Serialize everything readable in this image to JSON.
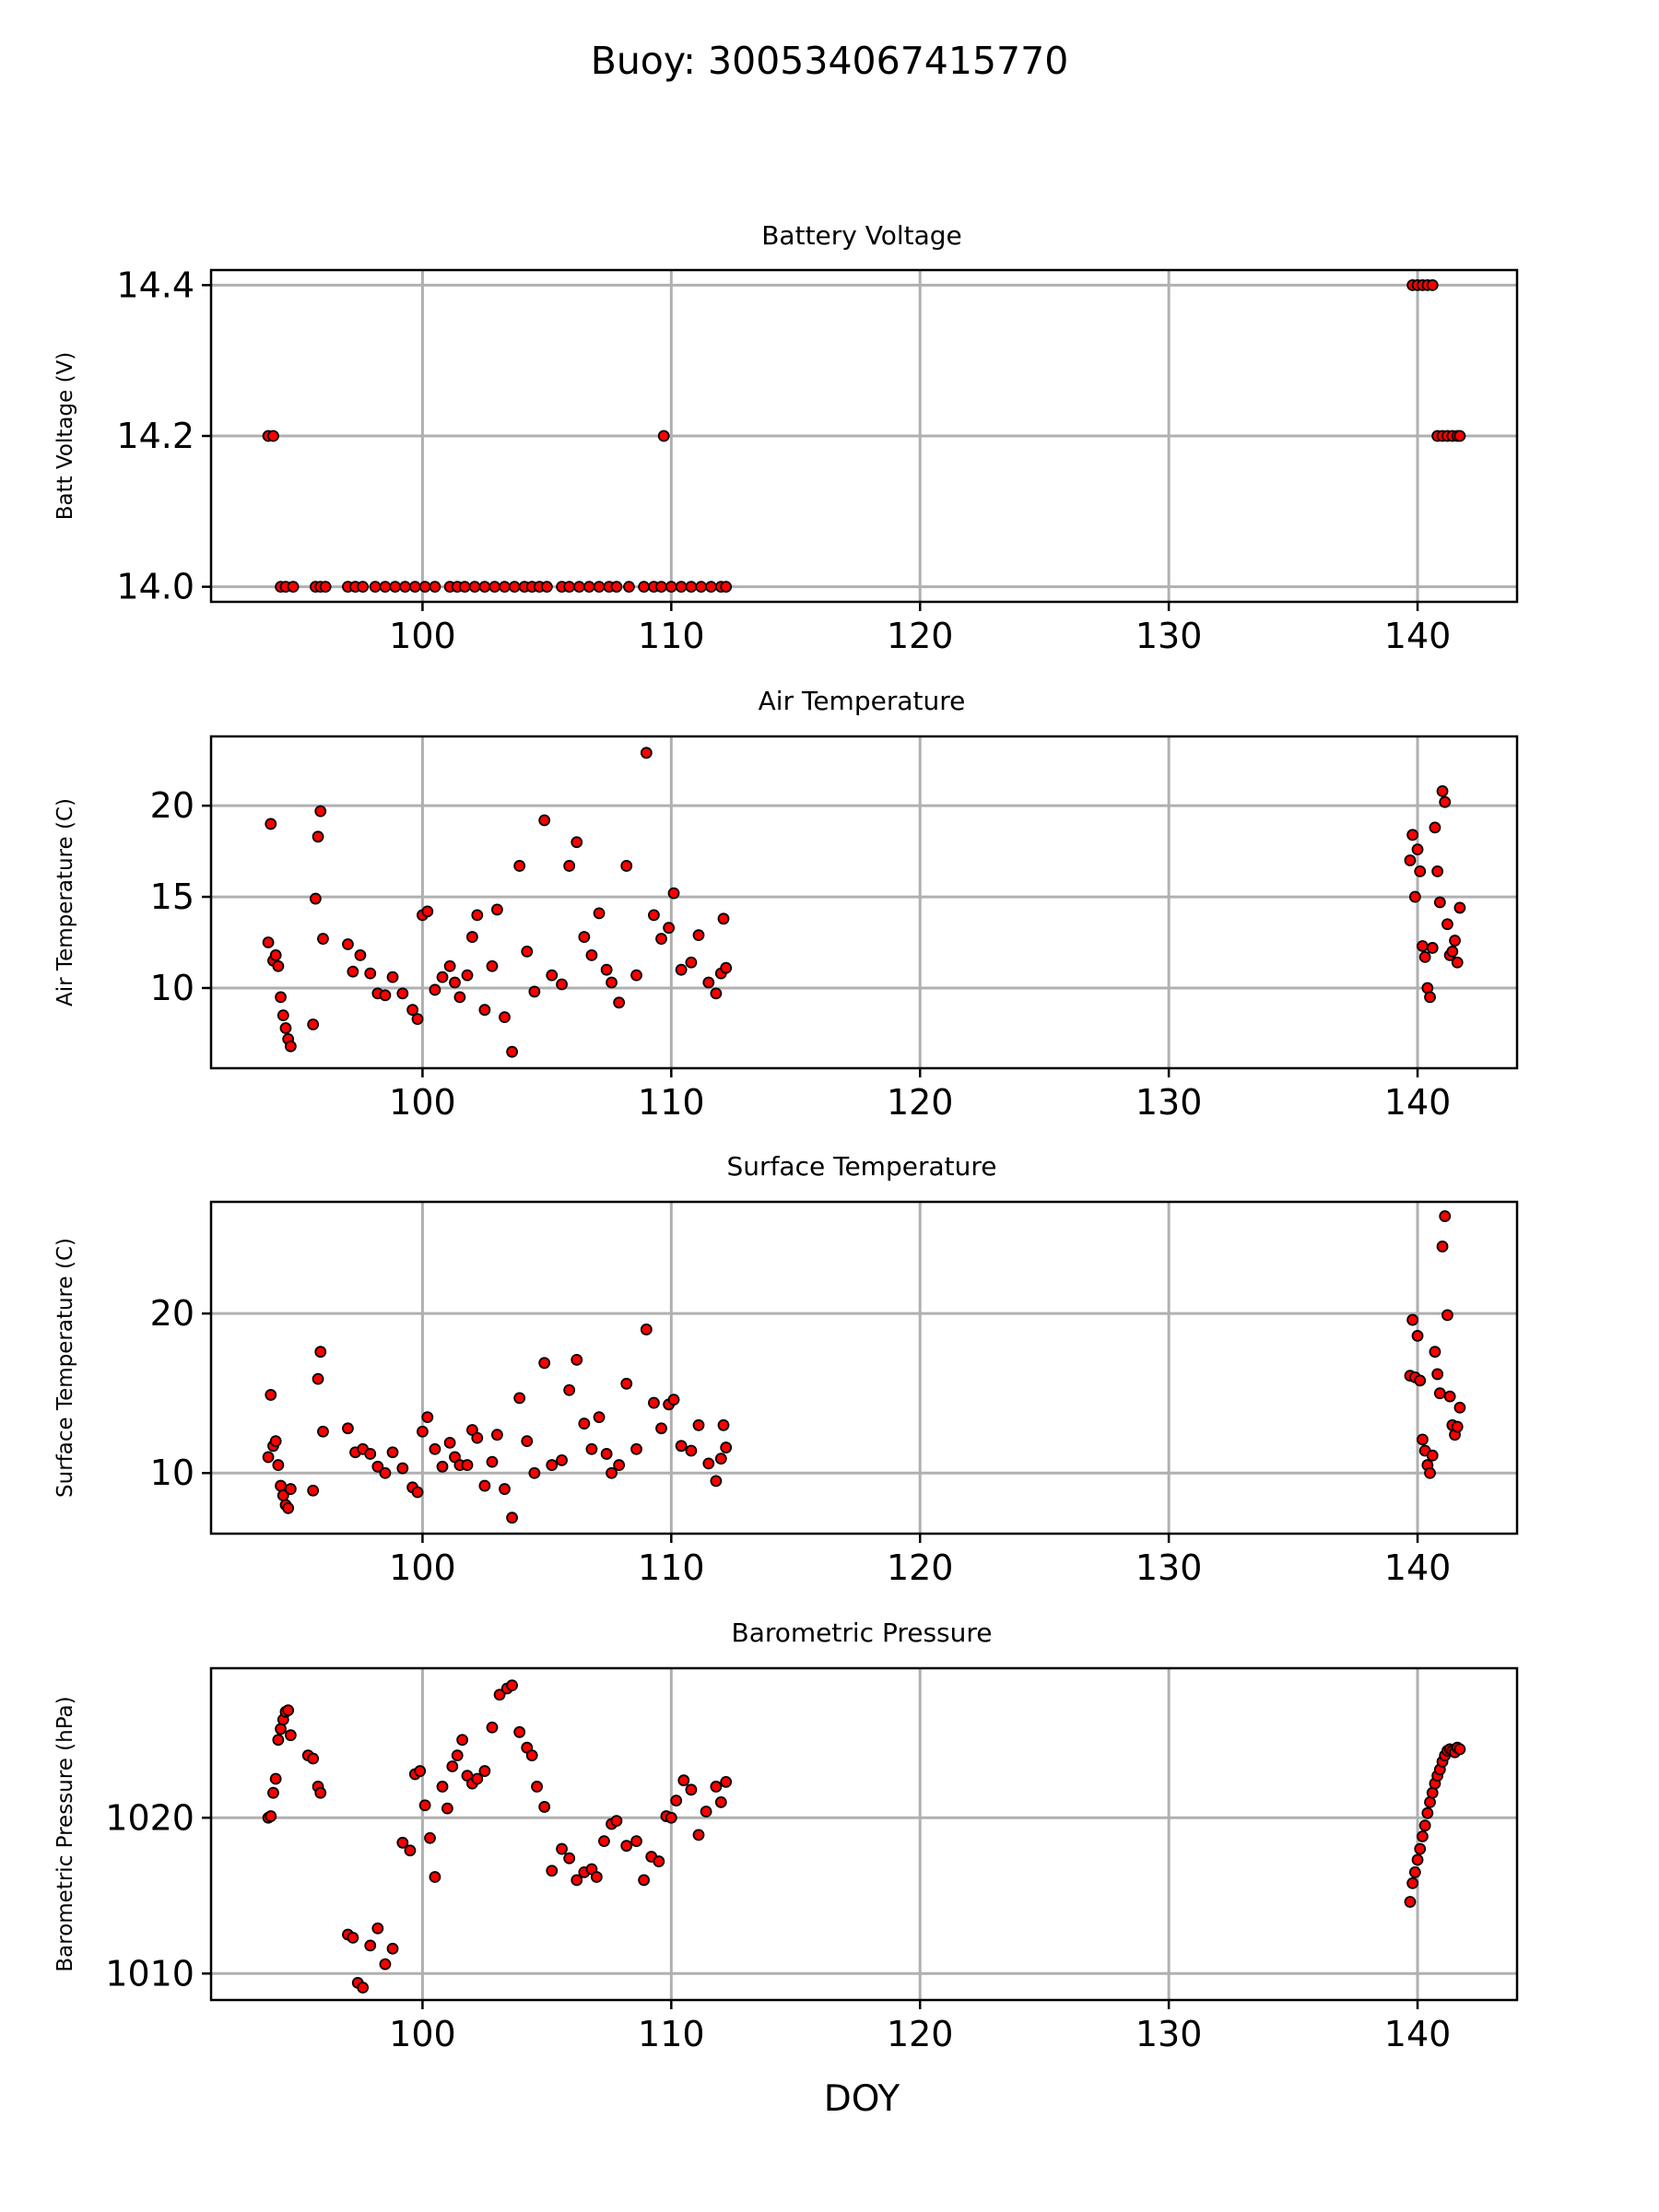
{
  "chart_data": {
    "type": "scatter",
    "title": "Buoy: 300534067415770",
    "xlabel": "DOY",
    "marker_color": "#ff0000",
    "marker_edge": "#000000",
    "grid": true,
    "xlim": [
      91.5,
      144
    ],
    "xticks": [
      100,
      110,
      120,
      130,
      140
    ],
    "panels": [
      {
        "id": "battery",
        "title": "Battery Voltage",
        "ylabel": "Batt Voltage (V)",
        "ylim": [
          13.98,
          14.42
        ],
        "yticks": [
          14.0,
          14.2,
          14.4
        ],
        "ytick_labels": [
          "14.0",
          "14.2",
          "14.4"
        ],
        "x": [
          93.8,
          94.0,
          94.3,
          94.5,
          94.8,
          95.7,
          95.9,
          96.1,
          97.0,
          97.3,
          97.6,
          98.1,
          98.5,
          98.9,
          99.3,
          99.7,
          100.1,
          100.5,
          101.1,
          101.4,
          101.7,
          102.1,
          102.5,
          102.9,
          103.3,
          103.7,
          104.1,
          104.4,
          104.7,
          105.0,
          105.6,
          105.9,
          106.3,
          106.7,
          107.1,
          107.5,
          107.8,
          108.3,
          108.9,
          109.3,
          109.6,
          109.7,
          110.0,
          110.4,
          110.8,
          111.2,
          111.6,
          112.0,
          112.2,
          139.8,
          140.0,
          140.2,
          140.4,
          140.6,
          140.8,
          141.0,
          141.2,
          141.4,
          141.6,
          141.7
        ],
        "y": [
          14.2,
          14.2,
          14.0,
          14.0,
          14.0,
          14.0,
          14.0,
          14.0,
          14.0,
          14.0,
          14.0,
          14.0,
          14.0,
          14.0,
          14.0,
          14.0,
          14.0,
          14.0,
          14.0,
          14.0,
          14.0,
          14.0,
          14.0,
          14.0,
          14.0,
          14.0,
          14.0,
          14.0,
          14.0,
          14.0,
          14.0,
          14.0,
          14.0,
          14.0,
          14.0,
          14.0,
          14.0,
          14.0,
          14.0,
          14.0,
          14.0,
          14.2,
          14.0,
          14.0,
          14.0,
          14.0,
          14.0,
          14.0,
          14.0,
          14.4,
          14.4,
          14.4,
          14.4,
          14.4,
          14.2,
          14.2,
          14.2,
          14.2,
          14.2,
          14.2
        ]
      },
      {
        "id": "air-temp",
        "title": "Air Temperature",
        "ylabel": "Air Temperature (C)",
        "ylim": [
          5.6,
          23.8
        ],
        "yticks": [
          10,
          15,
          20
        ],
        "ytick_labels": [
          "10",
          "15",
          "20"
        ],
        "x": [
          93.8,
          93.9,
          94.0,
          94.1,
          94.2,
          94.3,
          94.4,
          94.5,
          94.6,
          94.7,
          95.6,
          95.7,
          95.8,
          95.9,
          96.0,
          97.0,
          97.2,
          97.5,
          97.9,
          98.2,
          98.5,
          98.8,
          99.2,
          99.6,
          99.8,
          100.0,
          100.2,
          100.5,
          100.8,
          101.1,
          101.3,
          101.5,
          101.8,
          102.0,
          102.2,
          102.5,
          102.8,
          103.0,
          103.3,
          103.6,
          103.9,
          104.2,
          104.5,
          104.9,
          105.2,
          105.6,
          105.9,
          106.2,
          106.5,
          106.8,
          107.1,
          107.4,
          107.6,
          107.9,
          108.2,
          108.6,
          109.0,
          109.3,
          109.6,
          109.9,
          110.1,
          110.4,
          110.8,
          111.1,
          111.5,
          111.8,
          112.0,
          112.1,
          112.2,
          139.7,
          139.8,
          139.9,
          140.0,
          140.1,
          140.2,
          140.3,
          140.4,
          140.5,
          140.6,
          140.7,
          140.8,
          140.9,
          141.0,
          141.1,
          141.2,
          141.3,
          141.4,
          141.5,
          141.6,
          141.7
        ],
        "y": [
          12.5,
          19.0,
          11.5,
          11.8,
          11.2,
          9.5,
          8.5,
          7.8,
          7.2,
          6.8,
          8.0,
          14.9,
          18.3,
          19.7,
          12.7,
          12.4,
          10.9,
          11.8,
          10.8,
          9.7,
          9.6,
          10.6,
          9.7,
          8.8,
          8.3,
          14.0,
          14.2,
          9.9,
          10.6,
          11.2,
          10.3,
          9.5,
          10.7,
          12.8,
          14.0,
          8.8,
          11.2,
          14.3,
          8.4,
          6.5,
          16.7,
          12.0,
          9.8,
          19.2,
          10.7,
          10.2,
          16.7,
          18.0,
          12.8,
          11.8,
          14.1,
          11.0,
          10.3,
          9.2,
          16.7,
          10.7,
          22.9,
          14.0,
          12.7,
          13.3,
          15.2,
          11.0,
          11.4,
          12.9,
          10.3,
          9.7,
          10.8,
          13.8,
          11.1,
          17.0,
          18.4,
          15.0,
          17.6,
          16.4,
          12.3,
          11.7,
          10.0,
          9.5,
          12.2,
          18.8,
          16.4,
          14.7,
          20.8,
          20.2,
          13.5,
          11.8,
          12.0,
          12.6,
          11.4,
          14.4
        ],
        "ylim_note": ""
      },
      {
        "id": "surface-temp",
        "title": "Surface Temperature",
        "ylabel": "Surface Temperature (C)",
        "ylim": [
          6.2,
          27.0
        ],
        "yticks": [
          10,
          20
        ],
        "ytick_labels": [
          "10",
          "20"
        ],
        "x": [
          93.8,
          93.9,
          94.0,
          94.1,
          94.2,
          94.3,
          94.4,
          94.5,
          94.6,
          94.7,
          95.6,
          95.8,
          95.9,
          96.0,
          97.0,
          97.3,
          97.6,
          97.9,
          98.2,
          98.5,
          98.8,
          99.2,
          99.6,
          99.8,
          100.0,
          100.2,
          100.5,
          100.8,
          101.1,
          101.3,
          101.5,
          101.8,
          102.0,
          102.2,
          102.5,
          102.8,
          103.0,
          103.3,
          103.6,
          103.9,
          104.2,
          104.5,
          104.9,
          105.2,
          105.6,
          105.9,
          106.2,
          106.5,
          106.8,
          107.1,
          107.4,
          107.6,
          107.9,
          108.2,
          108.6,
          109.0,
          109.3,
          109.6,
          109.9,
          110.1,
          110.4,
          110.8,
          111.1,
          111.5,
          111.8,
          112.0,
          112.1,
          112.2,
          139.7,
          139.8,
          139.9,
          140.0,
          140.1,
          140.2,
          140.3,
          140.4,
          140.5,
          140.6,
          140.7,
          140.8,
          140.9,
          141.0,
          141.1,
          141.2,
          141.3,
          141.4,
          141.5,
          141.6,
          141.7
        ],
        "y": [
          11.0,
          14.9,
          11.7,
          12.0,
          10.5,
          9.2,
          8.6,
          8.0,
          7.8,
          9.0,
          8.9,
          15.9,
          17.6,
          12.6,
          12.8,
          11.3,
          11.5,
          11.2,
          10.4,
          10.0,
          11.3,
          10.3,
          9.1,
          8.8,
          12.6,
          13.5,
          11.5,
          10.4,
          11.9,
          11.0,
          10.5,
          10.5,
          12.7,
          12.2,
          9.2,
          10.7,
          12.4,
          9.0,
          7.2,
          14.7,
          12.0,
          10.0,
          16.9,
          10.5,
          10.8,
          15.2,
          17.1,
          13.1,
          11.5,
          13.5,
          11.2,
          10.0,
          10.5,
          15.6,
          11.5,
          19.0,
          14.4,
          12.8,
          14.3,
          14.6,
          11.7,
          11.4,
          13.0,
          10.6,
          9.5,
          10.9,
          13.0,
          11.6,
          16.1,
          19.6,
          16.0,
          18.6,
          15.8,
          12.1,
          11.4,
          10.5,
          10.0,
          11.1,
          17.6,
          16.2,
          15.0,
          24.2,
          26.1,
          19.9,
          14.8,
          13.0,
          12.4,
          12.9,
          14.1
        ],
        "ylim_note": ""
      },
      {
        "id": "pressure",
        "title": "Barometric Pressure",
        "ylabel": "Barometric Pressure (hPa)",
        "ylim": [
          1008.3,
          1029.6
        ],
        "yticks": [
          1010,
          1020
        ],
        "ytick_labels": [
          "1010",
          "1020"
        ],
        "x": [
          93.8,
          93.9,
          94.0,
          94.1,
          94.2,
          94.3,
          94.4,
          94.5,
          94.6,
          94.7,
          95.4,
          95.6,
          95.8,
          95.9,
          97.0,
          97.2,
          97.4,
          97.6,
          97.9,
          98.2,
          98.5,
          98.8,
          99.2,
          99.5,
          99.7,
          99.9,
          100.1,
          100.3,
          100.5,
          100.8,
          101.0,
          101.2,
          101.4,
          101.6,
          101.8,
          102.0,
          102.2,
          102.5,
          102.8,
          103.1,
          103.4,
          103.6,
          103.9,
          104.2,
          104.4,
          104.6,
          104.9,
          105.2,
          105.6,
          105.9,
          106.2,
          106.5,
          106.8,
          107.0,
          107.3,
          107.6,
          107.8,
          108.2,
          108.6,
          108.9,
          109.2,
          109.5,
          109.8,
          110.0,
          110.2,
          110.5,
          110.8,
          111.1,
          111.4,
          111.8,
          112.0,
          112.2,
          139.7,
          139.8,
          139.9,
          140.0,
          140.1,
          140.2,
          140.3,
          140.4,
          140.5,
          140.6,
          140.7,
          140.8,
          140.9,
          141.0,
          141.1,
          141.2,
          141.3,
          141.4,
          141.5,
          141.6,
          141.7
        ],
        "y": [
          1020.0,
          1020.1,
          1021.6,
          1022.5,
          1025.0,
          1025.7,
          1026.3,
          1026.8,
          1026.9,
          1025.3,
          1024.0,
          1023.8,
          1022.0,
          1021.6,
          1012.5,
          1012.3,
          1009.4,
          1009.1,
          1011.8,
          1012.9,
          1010.6,
          1011.6,
          1018.4,
          1017.9,
          1022.8,
          1023.0,
          1020.8,
          1018.7,
          1016.2,
          1022.0,
          1020.6,
          1023.3,
          1024.0,
          1025.0,
          1022.7,
          1022.2,
          1022.5,
          1023.0,
          1025.8,
          1027.9,
          1028.3,
          1028.5,
          1025.5,
          1024.5,
          1024.0,
          1022.0,
          1020.7,
          1016.6,
          1018.0,
          1017.4,
          1016.0,
          1016.5,
          1016.7,
          1016.2,
          1018.5,
          1019.6,
          1019.8,
          1018.2,
          1018.5,
          1016.0,
          1017.5,
          1017.2,
          1020.1,
          1020.0,
          1021.1,
          1022.4,
          1021.8,
          1018.9,
          1020.4,
          1022.0,
          1021.0,
          1022.3,
          1014.6,
          1015.8,
          1016.5,
          1017.3,
          1018.0,
          1018.8,
          1019.5,
          1020.3,
          1021.0,
          1021.6,
          1022.2,
          1022.7,
          1023.1,
          1023.6,
          1024.0,
          1024.3,
          1024.4,
          1024.3,
          1024.2,
          1024.5,
          1024.4
        ],
        "ylim_note": ""
      }
    ]
  }
}
